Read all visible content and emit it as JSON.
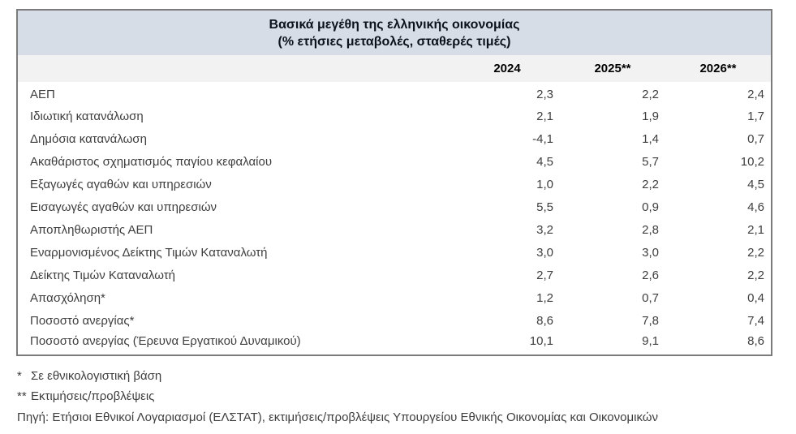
{
  "table": {
    "title_line1": "Βασικά μεγέθη της ελληνικής οικονομίας",
    "title_line2": "(% ετήσιες μεταβολές, σταθερές τιμές)",
    "columns": [
      "2024",
      "2025**",
      "2026**"
    ],
    "rows": [
      {
        "label": "ΑΕΠ",
        "values": [
          "2,3",
          "2,2",
          "2,4"
        ]
      },
      {
        "label": "Ιδιωτική κατανάλωση",
        "values": [
          "2,1",
          "1,9",
          "1,7"
        ]
      },
      {
        "label": "Δημόσια κατανάλωση",
        "values": [
          "-4,1",
          "1,4",
          "0,7"
        ]
      },
      {
        "label": "Ακαθάριστος σχηματισμός παγίου κεφαλαίου",
        "values": [
          "4,5",
          "5,7",
          "10,2"
        ]
      },
      {
        "label": "Εξαγωγές αγαθών και υπηρεσιών",
        "values": [
          "1,0",
          "2,2",
          "4,5"
        ]
      },
      {
        "label": "Εισαγωγές αγαθών και υπηρεσιών",
        "values": [
          "5,5",
          "0,9",
          "4,6"
        ]
      },
      {
        "label": "Αποπληθωριστής ΑΕΠ",
        "values": [
          "3,2",
          "2,8",
          "2,1"
        ]
      },
      {
        "label": "Εναρμονισμένος Δείκτης Τιμών Καταναλωτή",
        "values": [
          "3,0",
          "3,0",
          "2,2"
        ]
      },
      {
        "label": "Δείκτης Τιμών Καταναλωτή",
        "values": [
          "2,7",
          "2,6",
          "2,2"
        ]
      },
      {
        "label": "Απασχόληση*",
        "values": [
          "1,2",
          "0,7",
          "0,4"
        ]
      },
      {
        "label": "Ποσοστό ανεργίας*",
        "values": [
          "8,6",
          "7,8",
          "7,4"
        ]
      },
      {
        "label": "Ποσοστό ανεργίας (Έρευνα Εργατικού Δυναμικού)",
        "values": [
          "10,1",
          "9,1",
          "8,6"
        ]
      }
    ]
  },
  "footnotes": [
    {
      "marker": "*",
      "text": "Σε εθνικολογιστική βάση"
    },
    {
      "marker": "**",
      "text": "Εκτιμήσεις/προβλέψεις"
    }
  ],
  "source": "Πηγή: Ετήσιοι Εθνικοί Λογαριασμοί (ΕΛΣΤΑΤ), εκτιμήσεις/προβλέψεις Υπουργείου Εθνικής Οικονομίας και Οικονομικών",
  "colors": {
    "title_band_bg": "#d7dde7",
    "column_header_bg": "#f2f2f2",
    "table_border": "#7b7b7b",
    "body_text": "#3e3e3e",
    "title_text": "#0c121c"
  },
  "chart_data": {
    "type": "table",
    "title": "Βασικά μεγέθη της ελληνικής οικονομίας (% ετήσιες μεταβολές, σταθερές τιμές)",
    "categories": [
      "ΑΕΠ",
      "Ιδιωτική κατανάλωση",
      "Δημόσια κατανάλωση",
      "Ακαθάριστος σχηματισμός παγίου κεφαλαίου",
      "Εξαγωγές αγαθών και υπηρεσιών",
      "Εισαγωγές αγαθών και υπηρεσιών",
      "Αποπληθωριστής ΑΕΠ",
      "Εναρμονισμένος Δείκτης Τιμών Καταναλωτή",
      "Δείκτης Τιμών Καταναλωτή",
      "Απασχόληση*",
      "Ποσοστό ανεργίας*",
      "Ποσοστό ανεργίας (Έρευνα Εργατικού Δυναμικού)"
    ],
    "series": [
      {
        "name": "2024",
        "values": [
          2.3,
          2.1,
          -4.1,
          4.5,
          1.0,
          5.5,
          3.2,
          3.0,
          2.7,
          1.2,
          8.6,
          10.1
        ]
      },
      {
        "name": "2025**",
        "values": [
          2.2,
          1.9,
          1.4,
          5.7,
          2.2,
          0.9,
          2.8,
          3.0,
          2.6,
          0.7,
          7.8,
          9.1
        ]
      },
      {
        "name": "2026**",
        "values": [
          2.4,
          1.7,
          0.7,
          10.2,
          4.5,
          4.6,
          2.1,
          2.2,
          2.2,
          0.4,
          7.4,
          8.6
        ]
      }
    ]
  }
}
